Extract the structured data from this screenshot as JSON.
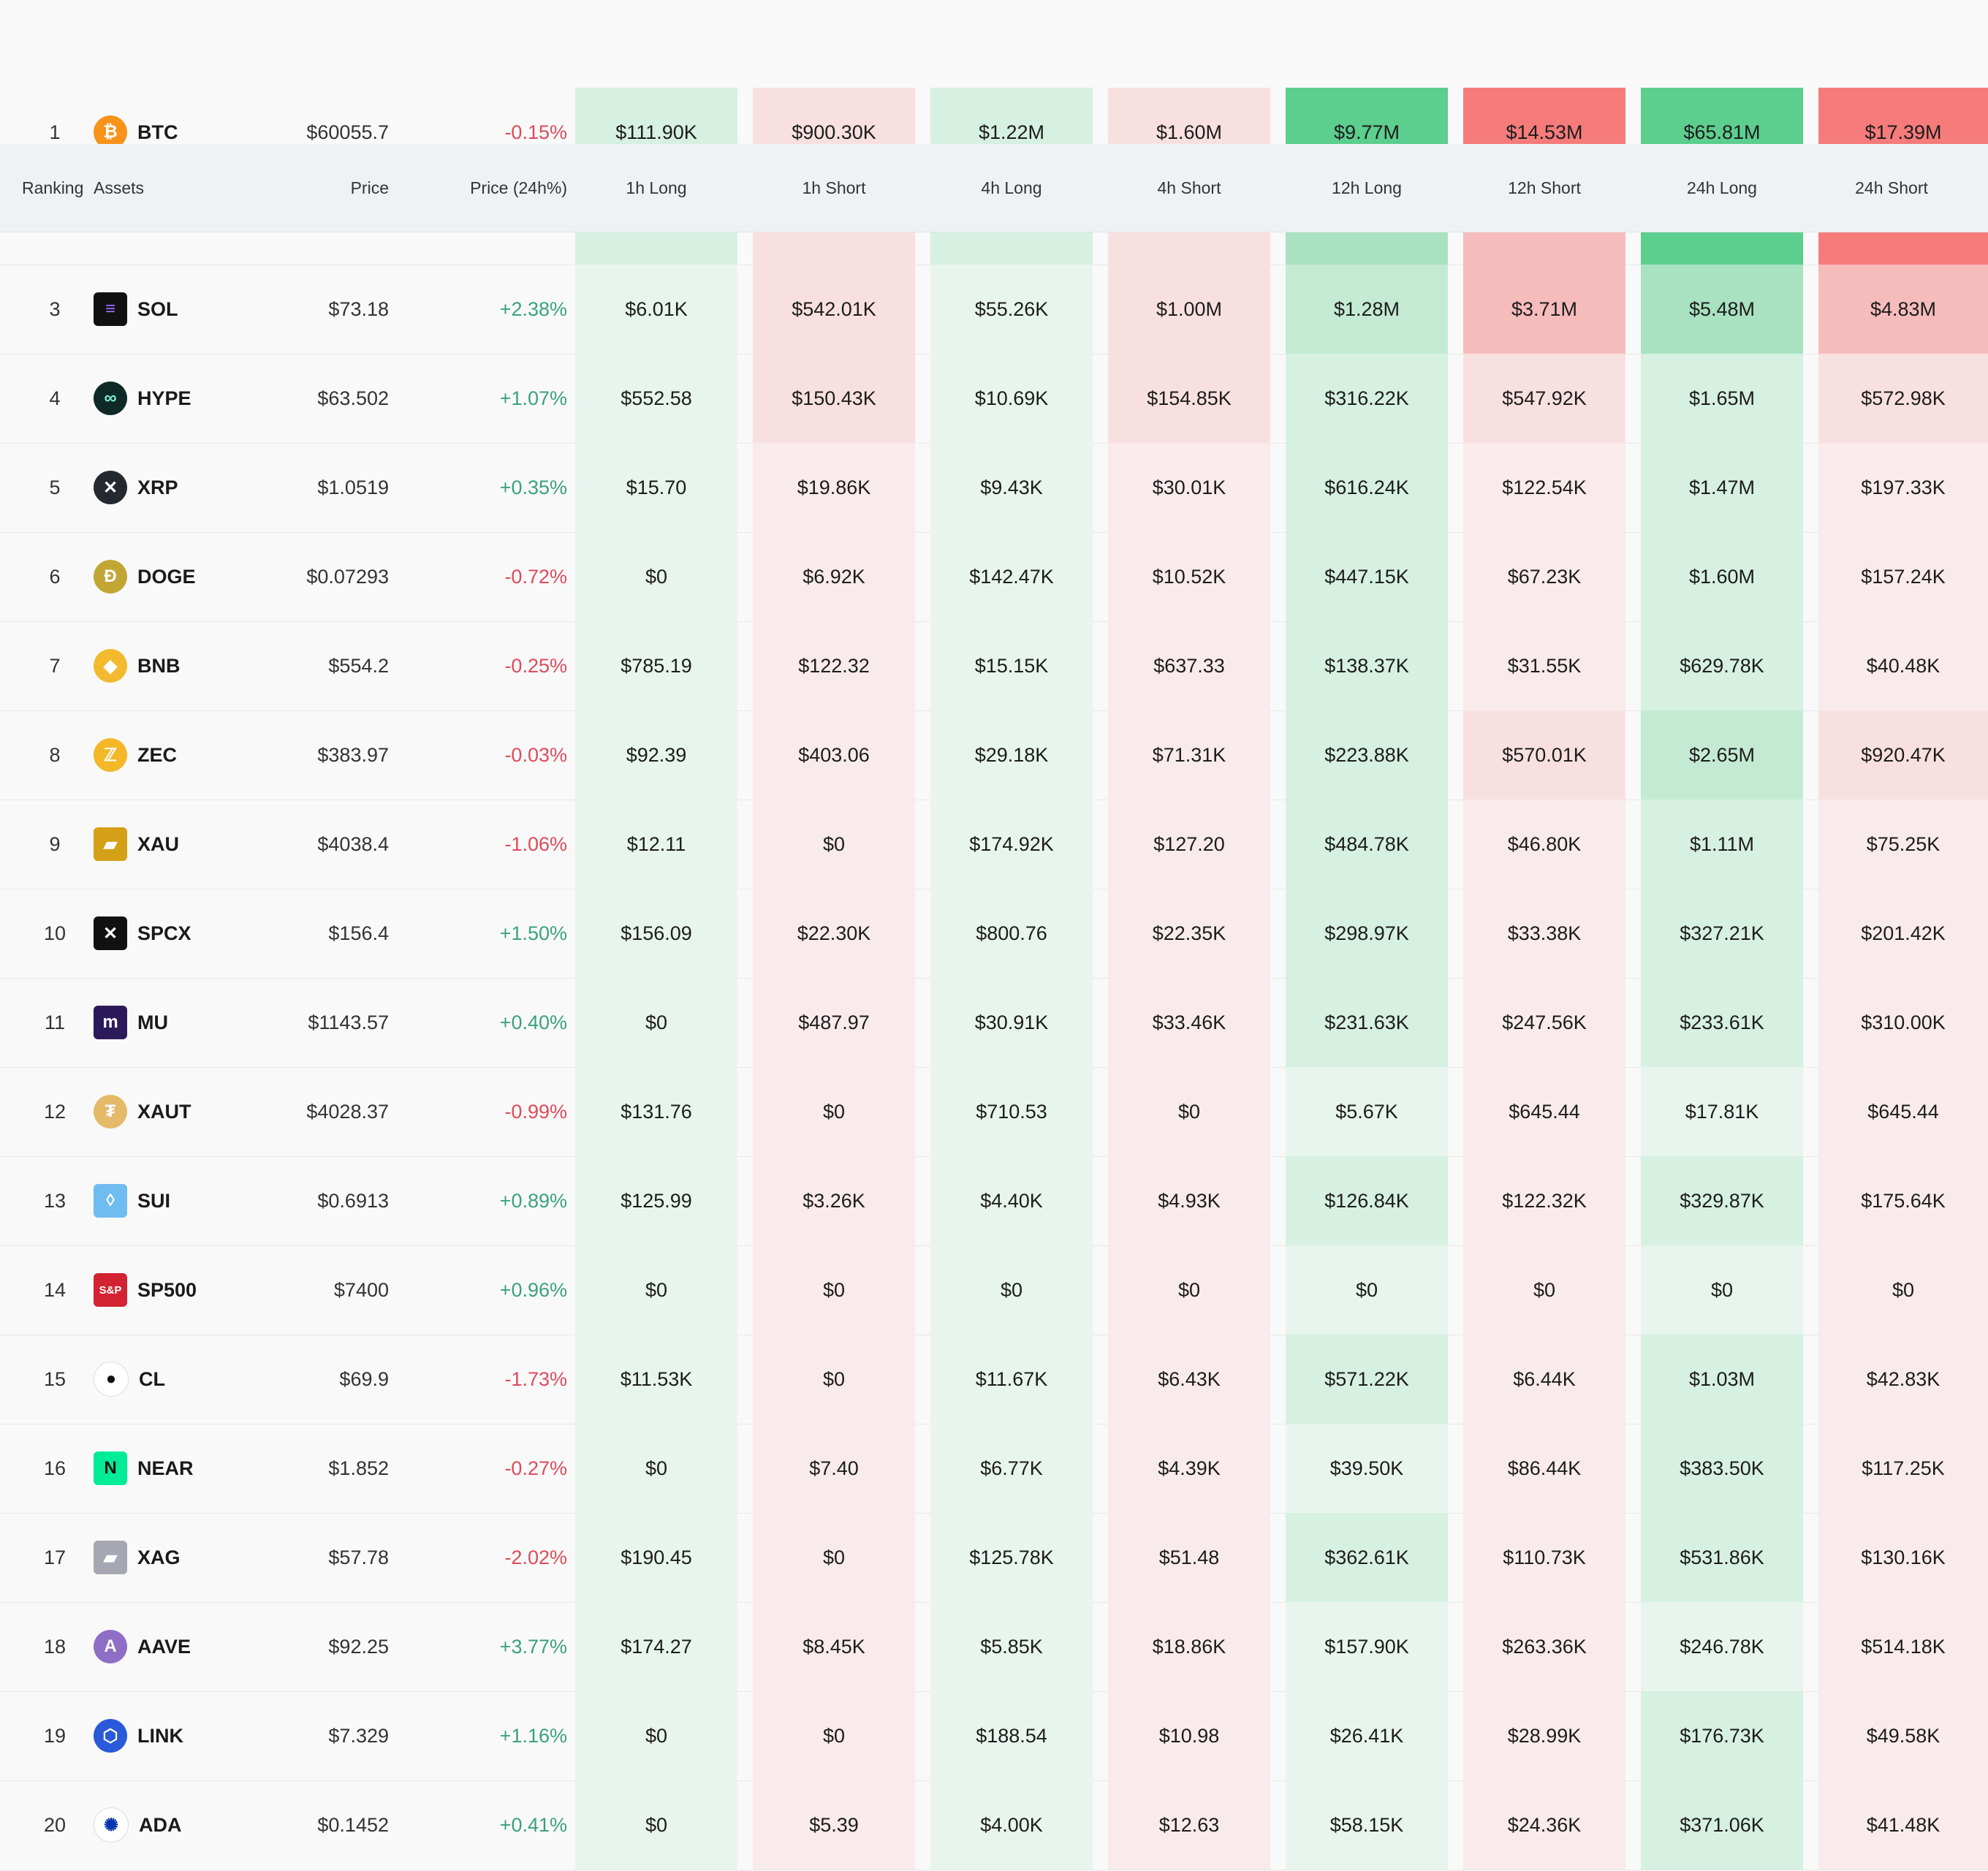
{
  "header": {
    "ranking": "Ranking",
    "assets": "Assets",
    "price": "Price",
    "price_change": "Price (24h%)",
    "cols": [
      "1h Long",
      "1h Short",
      "4h Long",
      "4h Short",
      "12h Long",
      "12h Short",
      "24h Long",
      "24h Short"
    ]
  },
  "rows": [
    {
      "rank": "1",
      "symbol": "BTC",
      "icon": "bitcoin-icon",
      "price": "$60055.7",
      "change": "-0.15%",
      "values": [
        "$111.90K",
        "$900.30K",
        "$1.22M",
        "$1.60M",
        "$9.77M",
        "$14.53M",
        "$65.81M",
        "$17.39M"
      ]
    },
    {
      "rank": "3",
      "symbol": "SOL",
      "icon": "solana-icon",
      "price": "$73.18",
      "change": "+2.38%",
      "values": [
        "$6.01K",
        "$542.01K",
        "$55.26K",
        "$1.00M",
        "$1.28M",
        "$3.71M",
        "$5.48M",
        "$4.83M"
      ]
    },
    {
      "rank": "4",
      "symbol": "HYPE",
      "icon": "hype-icon",
      "price": "$63.502",
      "change": "+1.07%",
      "values": [
        "$552.58",
        "$150.43K",
        "$10.69K",
        "$154.85K",
        "$316.22K",
        "$547.92K",
        "$1.65M",
        "$572.98K"
      ]
    },
    {
      "rank": "5",
      "symbol": "XRP",
      "icon": "xrp-icon",
      "price": "$1.0519",
      "change": "+0.35%",
      "values": [
        "$15.70",
        "$19.86K",
        "$9.43K",
        "$30.01K",
        "$616.24K",
        "$122.54K",
        "$1.47M",
        "$197.33K"
      ]
    },
    {
      "rank": "6",
      "symbol": "DOGE",
      "icon": "doge-icon",
      "price": "$0.07293",
      "change": "-0.72%",
      "values": [
        "$0",
        "$6.92K",
        "$142.47K",
        "$10.52K",
        "$447.15K",
        "$67.23K",
        "$1.60M",
        "$157.24K"
      ]
    },
    {
      "rank": "7",
      "symbol": "BNB",
      "icon": "bnb-icon",
      "price": "$554.2",
      "change": "-0.25%",
      "values": [
        "$785.19",
        "$122.32",
        "$15.15K",
        "$637.33",
        "$138.37K",
        "$31.55K",
        "$629.78K",
        "$40.48K"
      ]
    },
    {
      "rank": "8",
      "symbol": "ZEC",
      "icon": "zcash-icon",
      "price": "$383.97",
      "change": "-0.03%",
      "values": [
        "$92.39",
        "$403.06",
        "$29.18K",
        "$71.31K",
        "$223.88K",
        "$570.01K",
        "$2.65M",
        "$920.47K"
      ]
    },
    {
      "rank": "9",
      "symbol": "XAU",
      "icon": "gold-bars-icon",
      "price": "$4038.4",
      "change": "-1.06%",
      "values": [
        "$12.11",
        "$0",
        "$174.92K",
        "$127.20",
        "$484.78K",
        "$46.80K",
        "$1.11M",
        "$75.25K"
      ]
    },
    {
      "rank": "10",
      "symbol": "SPCX",
      "icon": "spacex-icon",
      "price": "$156.4",
      "change": "+1.50%",
      "values": [
        "$156.09",
        "$22.30K",
        "$800.76",
        "$22.35K",
        "$298.97K",
        "$33.38K",
        "$327.21K",
        "$201.42K"
      ]
    },
    {
      "rank": "11",
      "symbol": "MU",
      "icon": "micron-icon",
      "price": "$1143.57",
      "change": "+0.40%",
      "values": [
        "$0",
        "$487.97",
        "$30.91K",
        "$33.46K",
        "$231.63K",
        "$247.56K",
        "$233.61K",
        "$310.00K"
      ]
    },
    {
      "rank": "12",
      "symbol": "XAUT",
      "icon": "tether-gold-icon",
      "price": "$4028.37",
      "change": "-0.99%",
      "values": [
        "$131.76",
        "$0",
        "$710.53",
        "$0",
        "$5.67K",
        "$645.44",
        "$17.81K",
        "$645.44"
      ]
    },
    {
      "rank": "13",
      "symbol": "SUI",
      "icon": "sui-drop-icon",
      "price": "$0.6913",
      "change": "+0.89%",
      "values": [
        "$125.99",
        "$3.26K",
        "$4.40K",
        "$4.93K",
        "$126.84K",
        "$122.32K",
        "$329.87K",
        "$175.64K"
      ]
    },
    {
      "rank": "14",
      "symbol": "SP500",
      "icon": "sp500-icon",
      "price": "$7400",
      "change": "+0.96%",
      "values": [
        "$0",
        "$0",
        "$0",
        "$0",
        "$0",
        "$0",
        "$0",
        "$0"
      ]
    },
    {
      "rank": "15",
      "symbol": "CL",
      "icon": "oil-drop-icon",
      "price": "$69.9",
      "change": "-1.73%",
      "values": [
        "$11.53K",
        "$0",
        "$11.67K",
        "$6.43K",
        "$571.22K",
        "$6.44K",
        "$1.03M",
        "$42.83K"
      ]
    },
    {
      "rank": "16",
      "symbol": "NEAR",
      "icon": "near-icon",
      "price": "$1.852",
      "change": "-0.27%",
      "values": [
        "$0",
        "$7.40",
        "$6.77K",
        "$4.39K",
        "$39.50K",
        "$86.44K",
        "$383.50K",
        "$117.25K"
      ]
    },
    {
      "rank": "17",
      "symbol": "XAG",
      "icon": "silver-bars-icon",
      "price": "$57.78",
      "change": "-2.02%",
      "values": [
        "$190.45",
        "$0",
        "$125.78K",
        "$51.48",
        "$362.61K",
        "$110.73K",
        "$531.86K",
        "$130.16K"
      ]
    },
    {
      "rank": "18",
      "symbol": "AAVE",
      "icon": "aave-icon",
      "price": "$92.25",
      "change": "+3.77%",
      "values": [
        "$174.27",
        "$8.45K",
        "$5.85K",
        "$18.86K",
        "$157.90K",
        "$263.36K",
        "$246.78K",
        "$514.18K"
      ]
    },
    {
      "rank": "19",
      "symbol": "LINK",
      "icon": "chainlink-icon",
      "price": "$7.329",
      "change": "+1.16%",
      "values": [
        "$0",
        "$0",
        "$188.54",
        "$10.98",
        "$26.41K",
        "$28.99K",
        "$176.73K",
        "$49.58K"
      ]
    },
    {
      "rank": "20",
      "symbol": "ADA",
      "icon": "cardano-icon",
      "price": "$0.1452",
      "change": "+0.41%",
      "values": [
        "$0",
        "$5.39",
        "$4.00K",
        "$12.63",
        "$58.15K",
        "$24.36K",
        "$371.06K",
        "$41.48K"
      ]
    }
  ],
  "colors": {
    "positive": "#3aa37a",
    "negative": "#df4b5b",
    "heat_long": [
      "#e8f5ee",
      "#d6f0e1",
      "#c4ead4",
      "#a8e2c1",
      "#8edcb0",
      "#70d39c",
      "#5cce8e"
    ],
    "heat_short": [
      "#f9ebeb",
      "#f9e0e0",
      "#f8d1d1",
      "#f6bcbc",
      "#f4a2a2",
      "#f58c8c",
      "#f67b7b"
    ]
  },
  "heat_levels": [
    [
      1,
      1,
      1,
      1,
      6,
      6,
      6,
      6
    ],
    [
      0,
      1,
      0,
      1,
      2,
      3,
      3,
      3
    ],
    [
      0,
      1,
      0,
      1,
      1,
      1,
      1,
      1
    ],
    [
      0,
      0,
      0,
      0,
      1,
      0,
      1,
      0
    ],
    [
      0,
      0,
      0,
      0,
      1,
      0,
      1,
      0
    ],
    [
      0,
      0,
      0,
      0,
      1,
      0,
      1,
      0
    ],
    [
      0,
      0,
      0,
      0,
      1,
      1,
      2,
      1
    ],
    [
      0,
      0,
      0,
      0,
      1,
      0,
      1,
      0
    ],
    [
      0,
      0,
      0,
      0,
      1,
      0,
      1,
      0
    ],
    [
      0,
      0,
      0,
      0,
      1,
      0,
      1,
      0
    ],
    [
      0,
      0,
      0,
      0,
      0,
      0,
      0,
      0
    ],
    [
      0,
      0,
      0,
      0,
      1,
      0,
      1,
      0
    ],
    [
      0,
      0,
      0,
      0,
      0,
      0,
      0,
      0
    ],
    [
      0,
      0,
      0,
      0,
      1,
      0,
      1,
      0
    ],
    [
      0,
      0,
      0,
      0,
      0,
      0,
      1,
      0
    ],
    [
      0,
      0,
      0,
      0,
      1,
      0,
      1,
      0
    ],
    [
      0,
      0,
      0,
      0,
      0,
      0,
      0,
      0
    ],
    [
      0,
      0,
      0,
      0,
      0,
      0,
      1,
      0
    ],
    [
      0,
      0,
      0,
      0,
      0,
      0,
      1,
      0
    ]
  ],
  "partial_row_levels": [
    1,
    1,
    1,
    1,
    3,
    3,
    6,
    6
  ]
}
